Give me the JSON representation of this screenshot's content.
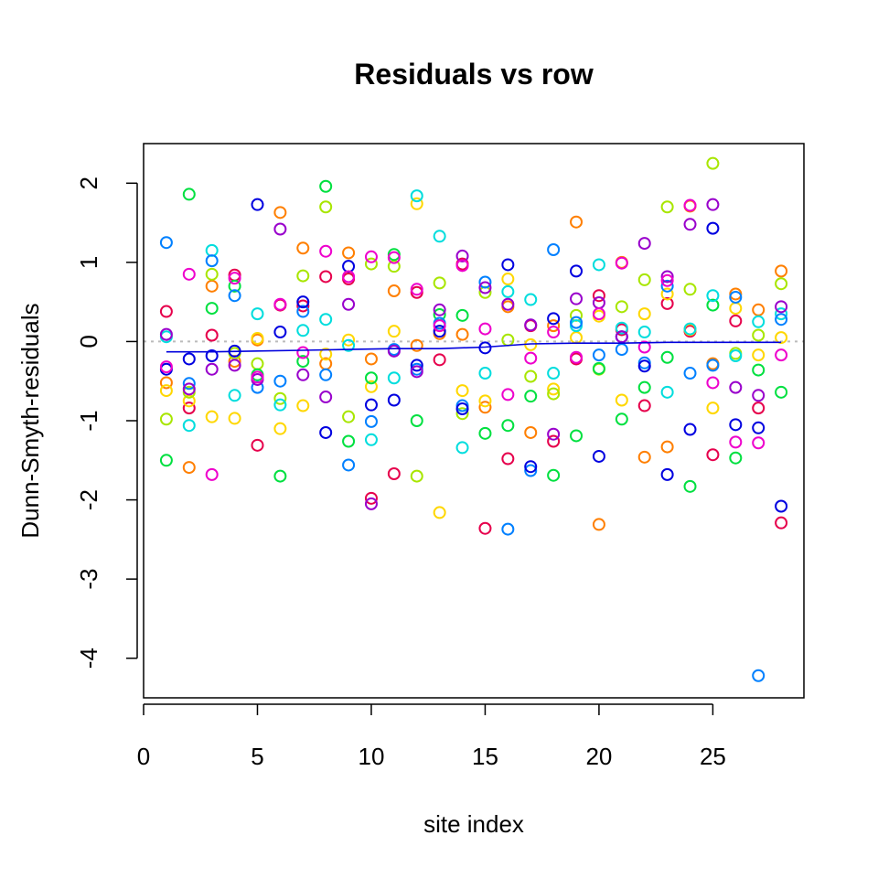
{
  "chart_data": {
    "type": "scatter",
    "title": "Residuals vs row",
    "xlabel": "site index",
    "ylabel": "Dunn-Smyth-residuals",
    "xlim": [
      0,
      29
    ],
    "ylim": [
      -4.5,
      2.5
    ],
    "xticks": [
      0,
      5,
      10,
      15,
      20,
      25
    ],
    "yticks": [
      -4,
      -3,
      -2,
      -1,
      0,
      1,
      2
    ],
    "grid": false,
    "legend": "none",
    "reference_line": {
      "y": 0,
      "color": "#bbbbbb",
      "style": "dotted"
    },
    "colors": [
      "#ff0000",
      "#ff7f00",
      "#ffd700",
      "#a8e600",
      "#00e040",
      "#00dddd",
      "#0080ff",
      "#0000e0",
      "#9900cc",
      "#ee00cc",
      "#e6004c",
      "#e6a000"
    ],
    "series": [
      {
        "x": [
          1,
          2,
          3,
          4,
          5,
          6,
          7,
          8,
          9,
          10,
          11,
          12,
          13,
          14,
          15,
          16,
          17,
          18,
          19,
          20,
          21,
          22,
          23,
          24,
          25,
          26,
          27,
          28
        ],
        "y": [
          0.38,
          -0.84,
          0.08,
          0.84,
          -1.31,
          0.46,
          0.45,
          0.82,
          0.79,
          -1.98,
          -1.67,
          0.62,
          -0.23,
          0.98,
          -2.36,
          -1.48,
          0.2,
          -1.26,
          -0.22,
          0.58,
          0.15,
          -0.81,
          0.48,
          0.13,
          -1.43,
          0.26,
          -0.84,
          -2.29
        ],
        "color": "#e6004c"
      },
      {
        "x": [
          1,
          2,
          3,
          4,
          5,
          6,
          7,
          8,
          9,
          10,
          11,
          12,
          13,
          14,
          15,
          16,
          17,
          18,
          19,
          20,
          21,
          22,
          23,
          24,
          25,
          26,
          27,
          28
        ],
        "y": [
          -0.52,
          -1.59,
          0.7,
          -0.25,
          0.02,
          1.63,
          1.18,
          -0.28,
          1.12,
          -0.22,
          0.64,
          -0.05,
          0.1,
          0.09,
          -0.83,
          0.44,
          -1.15,
          0.2,
          1.51,
          -2.31,
          1.0,
          -1.46,
          -1.33,
          1.71,
          -0.28,
          0.6,
          0.4,
          0.89
        ],
        "color": "#ff7f00"
      },
      {
        "x": [
          1,
          2,
          3,
          4,
          5,
          6,
          7,
          8,
          9,
          10,
          11,
          12,
          13,
          14,
          15,
          16,
          17,
          18,
          19,
          20,
          21,
          22,
          23,
          24,
          25,
          26,
          27,
          28
        ],
        "y": [
          -0.62,
          -0.75,
          -0.95,
          -0.97,
          0.04,
          -1.1,
          -0.81,
          -0.16,
          0.02,
          -0.57,
          0.13,
          1.74,
          -2.16,
          -0.62,
          -0.75,
          0.79,
          -0.04,
          -0.6,
          0.05,
          0.32,
          -0.74,
          0.35,
          0.6,
          0.15,
          -0.84,
          0.42,
          -0.17,
          0.05
        ],
        "color": "#ffd700"
      },
      {
        "x": [
          1,
          2,
          3,
          4,
          5,
          6,
          7,
          8,
          9,
          10,
          11,
          12,
          13,
          14,
          15,
          16,
          17,
          18,
          19,
          20,
          21,
          22,
          23,
          24,
          25,
          26,
          27,
          28
        ],
        "y": [
          -0.98,
          -0.64,
          0.85,
          -0.15,
          -0.28,
          -0.72,
          0.83,
          1.7,
          -0.95,
          0.98,
          0.95,
          -1.7,
          0.74,
          -0.91,
          0.62,
          0.02,
          -0.44,
          -0.66,
          0.33,
          -0.35,
          0.44,
          0.78,
          1.7,
          0.66,
          2.25,
          -0.15,
          0.08,
          0.73
        ],
        "color": "#a8e600"
      },
      {
        "x": [
          1,
          2,
          3,
          4,
          5,
          6,
          7,
          8,
          9,
          10,
          11,
          12,
          13,
          14,
          15,
          16,
          17,
          18,
          19,
          20,
          21,
          22,
          23,
          24,
          25,
          26,
          27,
          28
        ],
        "y": [
          -1.5,
          1.86,
          0.42,
          0.7,
          -0.42,
          -1.7,
          -0.25,
          1.96,
          -1.26,
          -0.46,
          1.1,
          -1.0,
          0.34,
          0.33,
          -1.16,
          -1.06,
          -0.69,
          -1.69,
          -1.19,
          -0.34,
          -0.98,
          -0.58,
          -0.2,
          -1.83,
          0.46,
          -1.47,
          -0.36,
          -0.64
        ],
        "color": "#00e040"
      },
      {
        "x": [
          1,
          2,
          3,
          4,
          5,
          6,
          7,
          8,
          9,
          10,
          11,
          12,
          13,
          14,
          15,
          16,
          17,
          18,
          19,
          20,
          21,
          22,
          23,
          24,
          25,
          26,
          27,
          28
        ],
        "y": [
          0.06,
          -1.06,
          1.15,
          -0.68,
          0.35,
          -0.8,
          0.14,
          0.28,
          -0.05,
          -1.24,
          -0.46,
          1.84,
          1.33,
          -1.34,
          -0.4,
          0.63,
          0.53,
          -0.4,
          0.2,
          0.97,
          0.17,
          0.12,
          -0.64,
          0.16,
          0.58,
          -0.18,
          0.25,
          0.35
        ],
        "color": "#00dddd"
      },
      {
        "x": [
          1,
          2,
          3,
          4,
          5,
          6,
          7,
          8,
          9,
          10,
          11,
          12,
          13,
          14,
          15,
          16,
          17,
          18,
          19,
          20,
          21,
          22,
          23,
          24,
          25,
          26,
          27,
          28
        ],
        "y": [
          1.25,
          -0.53,
          1.02,
          0.58,
          -0.58,
          -0.5,
          0.38,
          -0.42,
          -1.56,
          -1.01,
          -0.1,
          -0.35,
          0.23,
          -0.81,
          0.75,
          -2.37,
          -1.63,
          1.16,
          0.24,
          -0.17,
          -0.1,
          -0.27,
          0.7,
          -0.4,
          -0.3,
          0.56,
          -4.22,
          0.28
        ],
        "color": "#0080ff"
      },
      {
        "x": [
          1,
          2,
          3,
          4,
          5,
          6,
          7,
          8,
          9,
          10,
          11,
          12,
          13,
          14,
          15,
          16,
          17,
          18,
          19,
          20,
          21,
          22,
          23,
          24,
          25,
          26,
          27,
          28
        ],
        "y": [
          -0.35,
          -0.22,
          -0.18,
          -0.12,
          1.73,
          0.12,
          0.5,
          -1.15,
          0.95,
          -0.8,
          -0.74,
          -0.3,
          0.13,
          -0.85,
          -0.08,
          0.97,
          -1.58,
          0.29,
          0.89,
          -1.45,
          0.06,
          -0.31,
          -1.68,
          -1.11,
          1.43,
          -1.05,
          -1.09,
          -2.08
        ],
        "color": "#0000e0"
      },
      {
        "x": [
          1,
          2,
          3,
          4,
          5,
          6,
          7,
          8,
          9,
          10,
          11,
          12,
          13,
          14,
          15,
          16,
          17,
          18,
          19,
          20,
          21,
          22,
          23,
          24,
          25,
          26,
          27,
          28
        ],
        "y": [
          0.09,
          -0.6,
          -0.35,
          -0.3,
          -0.48,
          1.42,
          -0.42,
          -0.7,
          0.47,
          -2.05,
          -0.12,
          -0.38,
          0.4,
          1.08,
          0.68,
          0.47,
          0.21,
          -1.17,
          0.54,
          0.49,
          0.06,
          1.24,
          0.82,
          1.48,
          1.73,
          -0.58,
          -0.68,
          0.44
        ],
        "color": "#9900cc"
      },
      {
        "x": [
          1,
          2,
          3,
          4,
          5,
          6,
          7,
          8,
          9,
          10,
          11,
          12,
          13,
          14,
          15,
          16,
          17,
          18,
          19,
          20,
          21,
          22,
          23,
          24,
          25,
          26,
          27,
          28
        ],
        "y": [
          -0.32,
          0.85,
          -1.68,
          0.8,
          -0.45,
          0.47,
          -0.14,
          1.14,
          0.82,
          1.07,
          1.06,
          0.66,
          0.2,
          0.96,
          0.16,
          -0.67,
          -0.21,
          0.12,
          -0.2,
          0.35,
          0.99,
          -0.07,
          0.77,
          1.72,
          -0.52,
          -1.27,
          -1.28,
          -0.17
        ],
        "color": "#ee00cc"
      }
    ],
    "trend_line": {
      "color": "#0000dd",
      "x": [
        1,
        3,
        5,
        7,
        9,
        11,
        13,
        15,
        17,
        19,
        21,
        23,
        25,
        27,
        28
      ],
      "y": [
        -0.13,
        -0.13,
        -0.12,
        -0.11,
        -0.1,
        -0.09,
        -0.09,
        -0.07,
        -0.03,
        -0.02,
        -0.02,
        -0.01,
        -0.01,
        -0.01,
        -0.01
      ]
    }
  }
}
